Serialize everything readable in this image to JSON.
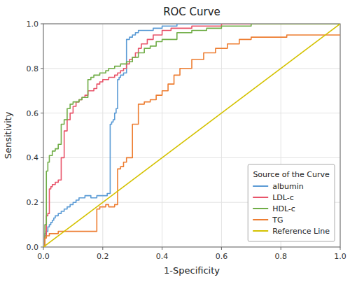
{
  "chart_data": {
    "type": "line",
    "title": "ROC Curve",
    "xlabel": "1-Specificity",
    "ylabel": "Sensitivity",
    "legend_title": "Source of the Curve",
    "legend": "lower right",
    "grid": true,
    "xlim": [
      0.0,
      1.0
    ],
    "ylim": [
      0.0,
      1.0
    ],
    "xticks": [
      {
        "value": 0.0,
        "label": "0.0"
      },
      0.2,
      0.4,
      0.6,
      0.8,
      {
        "value": 1.0,
        "label": "1.0"
      }
    ],
    "yticks": [
      {
        "value": 0.0,
        "label": "0.0"
      },
      0.2,
      0.4,
      0.6,
      0.8,
      {
        "value": 1.0,
        "label": "1.0"
      }
    ],
    "series": [
      {
        "name": "albumin",
        "color": "#5B9BD5",
        "type": "step",
        "x": [
          0.0,
          0.005,
          0.01,
          0.015,
          0.02,
          0.025,
          0.03,
          0.035,
          0.04,
          0.05,
          0.06,
          0.07,
          0.08,
          0.09,
          0.1,
          0.11,
          0.12,
          0.13,
          0.14,
          0.15,
          0.16,
          0.17,
          0.18,
          0.19,
          0.2,
          0.205,
          0.21,
          0.215,
          0.22,
          0.225,
          0.23,
          0.235,
          0.24,
          0.245,
          0.25,
          0.255,
          0.26,
          0.27,
          0.28,
          0.29,
          0.3,
          0.31,
          0.32,
          0.33,
          0.35,
          0.37,
          0.4,
          0.45,
          0.5,
          0.6,
          0.7,
          0.8,
          0.9,
          1.0
        ],
        "values": [
          0.0,
          0.06,
          0.07,
          0.09,
          0.1,
          0.11,
          0.12,
          0.13,
          0.14,
          0.15,
          0.16,
          0.17,
          0.18,
          0.19,
          0.2,
          0.21,
          0.22,
          0.22,
          0.23,
          0.23,
          0.22,
          0.22,
          0.23,
          0.23,
          0.23,
          0.23,
          0.23,
          0.24,
          0.24,
          0.55,
          0.56,
          0.57,
          0.6,
          0.62,
          0.75,
          0.76,
          0.77,
          0.78,
          0.93,
          0.94,
          0.95,
          0.96,
          0.97,
          0.97,
          0.97,
          0.98,
          0.99,
          1.0,
          1.0,
          1.0,
          1.0,
          1.0,
          1.0,
          1.0
        ]
      },
      {
        "name": "LDL-c",
        "color": "#E8546A",
        "type": "step",
        "x": [
          0.0,
          0.005,
          0.01,
          0.015,
          0.02,
          0.025,
          0.03,
          0.04,
          0.05,
          0.06,
          0.07,
          0.08,
          0.09,
          0.1,
          0.11,
          0.12,
          0.13,
          0.14,
          0.15,
          0.16,
          0.17,
          0.18,
          0.19,
          0.2,
          0.21,
          0.22,
          0.23,
          0.24,
          0.25,
          0.26,
          0.27,
          0.28,
          0.29,
          0.3,
          0.31,
          0.32,
          0.33,
          0.35,
          0.37,
          0.4,
          0.43,
          0.46,
          0.5,
          0.55,
          0.6,
          0.65,
          0.7,
          0.8,
          0.9,
          1.0
        ],
        "values": [
          0.0,
          0.05,
          0.14,
          0.15,
          0.26,
          0.27,
          0.28,
          0.29,
          0.3,
          0.4,
          0.52,
          0.57,
          0.6,
          0.63,
          0.65,
          0.66,
          0.67,
          0.68,
          0.7,
          0.7,
          0.71,
          0.73,
          0.74,
          0.75,
          0.75,
          0.76,
          0.76,
          0.77,
          0.78,
          0.79,
          0.8,
          0.82,
          0.84,
          0.85,
          0.87,
          0.89,
          0.91,
          0.93,
          0.95,
          0.97,
          0.98,
          0.98,
          0.99,
          0.99,
          1.0,
          1.0,
          1.0,
          1.0,
          1.0,
          1.0
        ]
      },
      {
        "name": "HDL-c",
        "color": "#70AD47",
        "type": "step",
        "x": [
          0.0,
          0.005,
          0.01,
          0.015,
          0.02,
          0.03,
          0.04,
          0.05,
          0.06,
          0.07,
          0.08,
          0.09,
          0.1,
          0.11,
          0.12,
          0.13,
          0.14,
          0.15,
          0.16,
          0.17,
          0.18,
          0.19,
          0.2,
          0.21,
          0.22,
          0.23,
          0.24,
          0.25,
          0.26,
          0.27,
          0.28,
          0.3,
          0.32,
          0.34,
          0.36,
          0.38,
          0.4,
          0.45,
          0.5,
          0.55,
          0.6,
          0.7,
          0.8,
          0.9,
          1.0
        ],
        "values": [
          0.0,
          0.1,
          0.34,
          0.38,
          0.41,
          0.43,
          0.44,
          0.46,
          0.55,
          0.57,
          0.62,
          0.64,
          0.65,
          0.65,
          0.66,
          0.67,
          0.67,
          0.75,
          0.76,
          0.77,
          0.77,
          0.78,
          0.78,
          0.79,
          0.8,
          0.8,
          0.81,
          0.81,
          0.82,
          0.82,
          0.83,
          0.85,
          0.87,
          0.89,
          0.9,
          0.92,
          0.93,
          0.96,
          0.97,
          0.98,
          0.99,
          1.0,
          1.0,
          1.0,
          1.0
        ]
      },
      {
        "name": "TG",
        "color": "#ED7D31",
        "type": "step",
        "x": [
          0.0,
          0.005,
          0.01,
          0.02,
          0.03,
          0.04,
          0.05,
          0.06,
          0.07,
          0.08,
          0.09,
          0.1,
          0.11,
          0.12,
          0.13,
          0.14,
          0.15,
          0.16,
          0.17,
          0.18,
          0.19,
          0.2,
          0.21,
          0.22,
          0.23,
          0.24,
          0.245,
          0.25,
          0.26,
          0.27,
          0.28,
          0.3,
          0.32,
          0.34,
          0.36,
          0.38,
          0.4,
          0.42,
          0.44,
          0.46,
          0.5,
          0.54,
          0.58,
          0.62,
          0.66,
          0.7,
          0.74,
          0.78,
          0.82,
          0.86,
          0.9,
          0.94,
          1.0
        ],
        "values": [
          0.0,
          0.04,
          0.05,
          0.06,
          0.06,
          0.06,
          0.07,
          0.07,
          0.07,
          0.07,
          0.07,
          0.07,
          0.07,
          0.07,
          0.07,
          0.07,
          0.07,
          0.07,
          0.07,
          0.17,
          0.18,
          0.18,
          0.19,
          0.18,
          0.18,
          0.19,
          0.19,
          0.35,
          0.36,
          0.38,
          0.4,
          0.55,
          0.64,
          0.65,
          0.66,
          0.68,
          0.7,
          0.73,
          0.77,
          0.8,
          0.84,
          0.87,
          0.89,
          0.91,
          0.93,
          0.94,
          0.94,
          0.94,
          0.95,
          0.95,
          0.95,
          0.95,
          0.95
        ]
      },
      {
        "name": "Reference Line",
        "color": "#D4C200",
        "type": "line",
        "x": [
          0,
          1
        ],
        "values": [
          0,
          1
        ]
      }
    ]
  }
}
